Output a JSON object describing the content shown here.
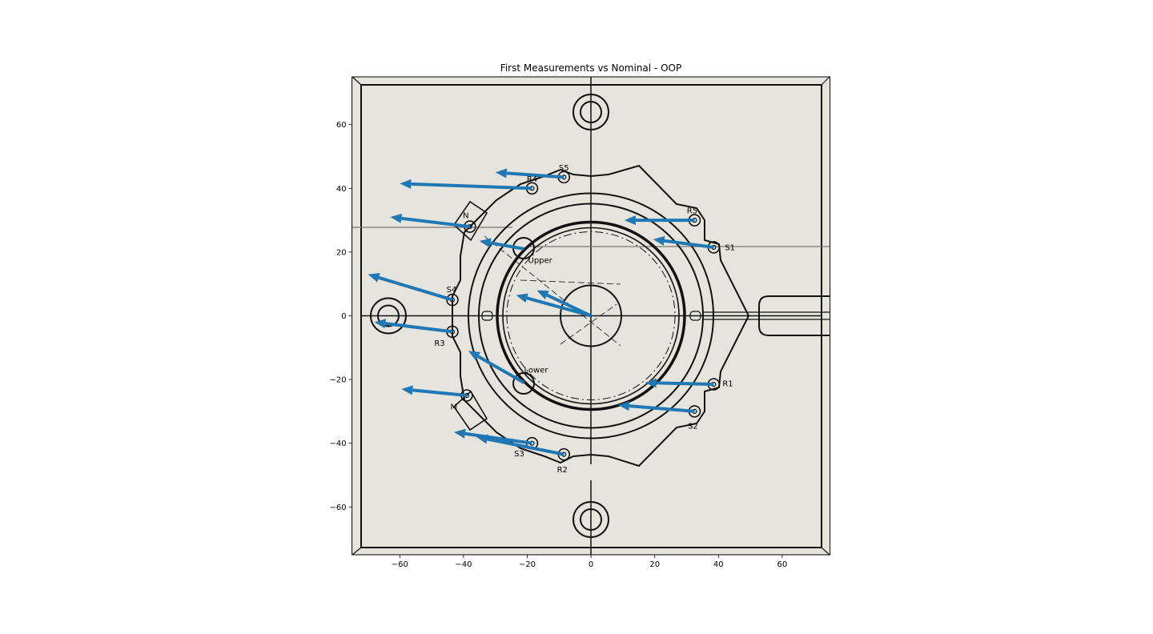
{
  "chart_data": {
    "type": "scatter",
    "subtype": "quiver",
    "title": "First Measurements vs Nominal - OOP",
    "xlabel": "",
    "ylabel": "",
    "xlim": [
      -75,
      75
    ],
    "ylim": [
      -75,
      75
    ],
    "xticks": [
      -60,
      -40,
      -20,
      0,
      20,
      40,
      60
    ],
    "yticks": [
      60,
      40,
      20,
      0,
      -20,
      -40,
      -60
    ],
    "xtick_labels": [
      "−60",
      "−40",
      "−20",
      "0",
      "20",
      "40",
      "60"
    ],
    "ytick_labels": [
      "60",
      "40",
      "20",
      "0",
      "−20",
      "−40",
      "−60"
    ],
    "grid": false,
    "arrow_color": "#1f77b4",
    "background_color": "#e6e5dd",
    "points": [
      {
        "label": "S5",
        "x": -8.5,
        "y": 43.5,
        "dx": -21.5,
        "dy": 1.5
      },
      {
        "label": "R4",
        "x": -18.5,
        "y": 40.0,
        "dx": -41.5,
        "dy": 1.5
      },
      {
        "label": "R5",
        "x": 32.5,
        "y": 30.0,
        "dx": -22.0,
        "dy": 0.0
      },
      {
        "label": "N",
        "x": -38.0,
        "y": 28.0,
        "dx": -25.0,
        "dy": 3.0
      },
      {
        "label": "S1",
        "x": 38.5,
        "y": 21.5,
        "dx": -19.0,
        "dy": 2.5
      },
      {
        "label": "Upper",
        "x": -21.0,
        "y": 21.0,
        "dx": -14.0,
        "dy": 2.5
      },
      {
        "label": "",
        "x": 0.0,
        "y": 0.0,
        "dx": -17.0,
        "dy": 8.0
      },
      {
        "label": "",
        "x": 0.0,
        "y": 0.0,
        "dx": -23.5,
        "dy": 6.5
      },
      {
        "label": "S4",
        "x": -43.5,
        "y": 5.0,
        "dx": -26.5,
        "dy": 8.0
      },
      {
        "label": "R3",
        "x": -43.5,
        "y": -5.0,
        "dx": -24.5,
        "dy": 3.0
      },
      {
        "label": "Lower",
        "x": -21.0,
        "y": -21.0,
        "dx": -17.5,
        "dy": 10.0
      },
      {
        "label": "R1",
        "x": 38.5,
        "y": -21.5,
        "dx": -21.5,
        "dy": 0.5
      },
      {
        "label": "M",
        "x": -39.0,
        "y": -25.0,
        "dx": -20.5,
        "dy": 2.0
      },
      {
        "label": "S2",
        "x": 32.5,
        "y": -30.0,
        "dx": -24.0,
        "dy": 2.0
      },
      {
        "label": "S3",
        "x": -18.5,
        "y": -40.0,
        "dx": -24.5,
        "dy": 3.5
      },
      {
        "label": "R2",
        "x": -8.5,
        "y": -43.5,
        "dx": -27.5,
        "dy": 5.5
      }
    ]
  }
}
